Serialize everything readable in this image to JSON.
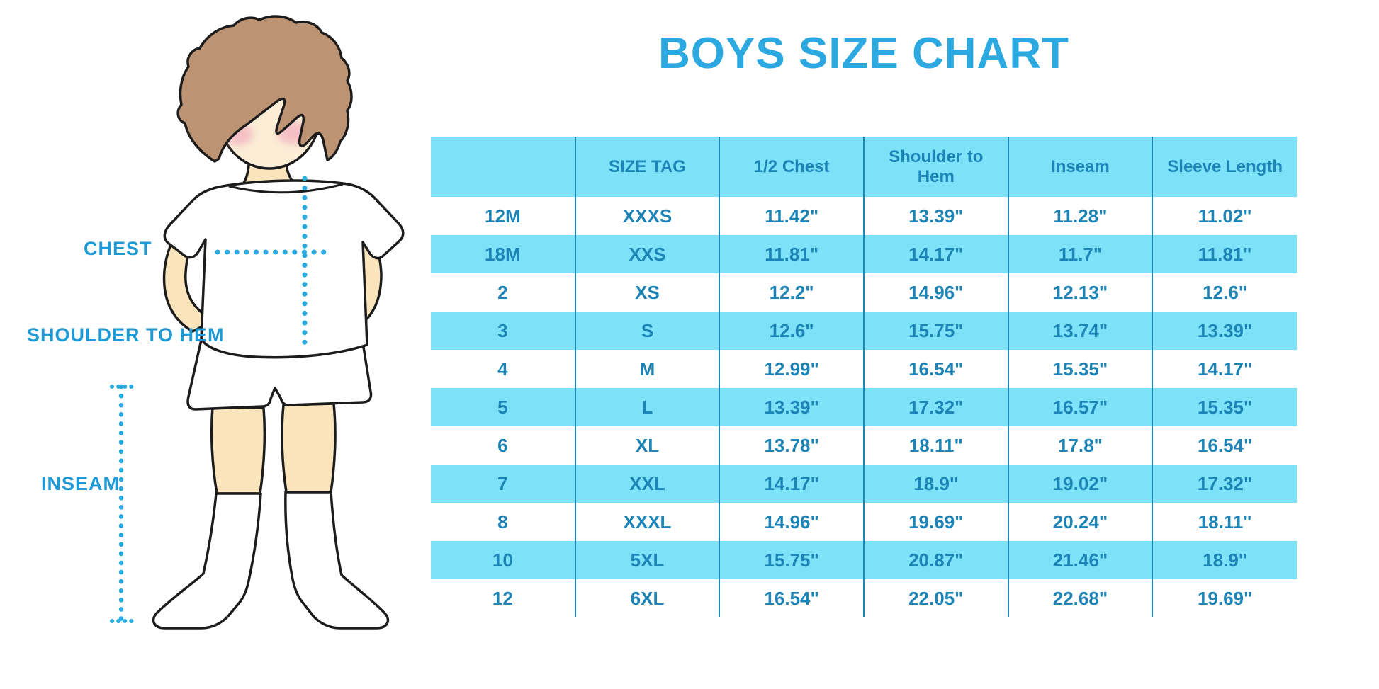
{
  "title": "BOYS SIZE CHART",
  "figure": {
    "chest_label": "CHEST",
    "shoulder_to_hem_label": "SHOULDER TO HEM",
    "inseam_label": "INSEAM"
  },
  "chart_data": {
    "type": "table",
    "title": "BOYS SIZE CHART",
    "columns": [
      "",
      "SIZE TAG",
      "1/2 Chest",
      "Shoulder to Hem",
      "Inseam",
      "Sleeve Length"
    ],
    "rows": [
      [
        "12M",
        "XXXS",
        "11.42\"",
        "13.39\"",
        "11.28\"",
        "11.02\""
      ],
      [
        "18M",
        "XXS",
        "11.81\"",
        "14.17\"",
        "11.7\"",
        "11.81\""
      ],
      [
        "2",
        "XS",
        "12.2\"",
        "14.96\"",
        "12.13\"",
        "12.6\""
      ],
      [
        "3",
        "S",
        "12.6\"",
        "15.75\"",
        "13.74\"",
        "13.39\""
      ],
      [
        "4",
        "M",
        "12.99\"",
        "16.54\"",
        "15.35\"",
        "14.17\""
      ],
      [
        "5",
        "L",
        "13.39\"",
        "17.32\"",
        "16.57\"",
        "15.35\""
      ],
      [
        "6",
        "XL",
        "13.78\"",
        "18.11\"",
        "17.8\"",
        "16.54\""
      ],
      [
        "7",
        "XXL",
        "14.17\"",
        "18.9\"",
        "19.02\"",
        "17.32\""
      ],
      [
        "8",
        "XXXL",
        "14.96\"",
        "19.69\"",
        "20.24\"",
        "18.11\""
      ],
      [
        "10",
        "5XL",
        "15.75\"",
        "20.87\"",
        "21.46\"",
        "18.9\""
      ],
      [
        "12",
        "6XL",
        "16.54\"",
        "22.05\"",
        "22.68\"",
        "19.69\""
      ]
    ],
    "annotations": [
      "CHEST",
      "SHOULDER TO HEM",
      "INSEAM"
    ],
    "units": "inches"
  },
  "colors": {
    "title_blue": "#2BA9E0",
    "label_blue": "#1E9AD6",
    "header_bg": "#7DE2F8",
    "row_alt_bg": "#7DE2F8",
    "cell_text": "#1C84B6",
    "divider": "#1A87BC",
    "dot_blue": "#29ABE2",
    "hair_brown": "#BC9473",
    "skin": "#F9E4BC",
    "skin_face": "#FBEDD6",
    "blush": "#F2A9BC",
    "outline": "#1C1C1C"
  }
}
